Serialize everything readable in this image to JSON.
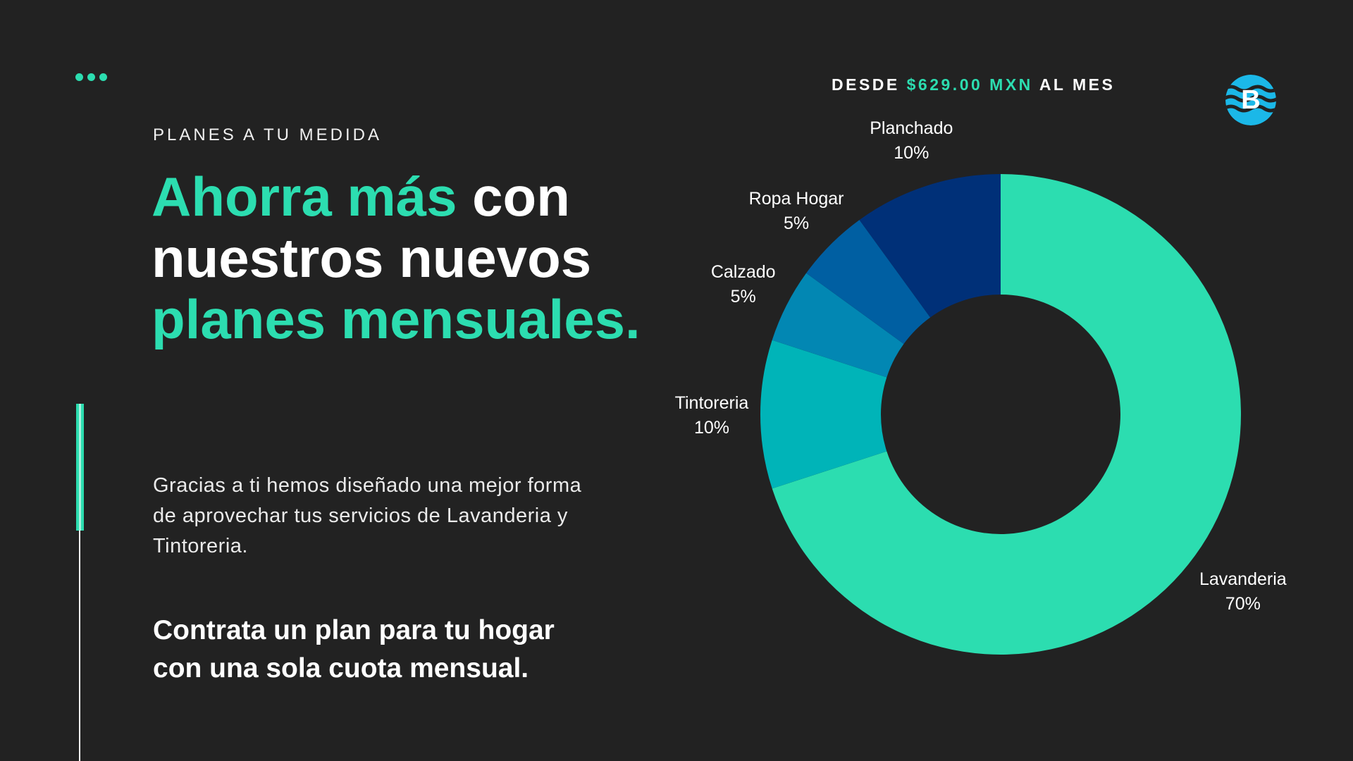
{
  "eyebrow": "PLANES A TU MEDIDA",
  "headline": {
    "accent1": "Ahorra más",
    "white1": " con",
    "white2": "nuestros nuevos",
    "accent2": "planes mensuales."
  },
  "body": "Gracias a ti hemos diseñado una mejor forma de aprovechar tus servicios de Lavanderia y Tintoreria.",
  "cta": "Contrata un plan para tu hogar con una sola cuota mensual.",
  "price": {
    "prefix": "DESDE ",
    "amount": "$629.00 MXN",
    "suffix": " AL MES"
  },
  "logo_letter": "B",
  "colors": {
    "background": "#222222",
    "accent": "#2cddb0",
    "logo": "#1bb8e8"
  },
  "chart_data": {
    "type": "pie",
    "donut": true,
    "start_angle_deg": 0,
    "direction": "clockwise",
    "slices": [
      {
        "label": "Lavanderia",
        "value_label": "70%",
        "value": 70,
        "color": "#2cddb0"
      },
      {
        "label": "Tintoreria",
        "value_label": "10%",
        "value": 10,
        "color": "#00b4b8"
      },
      {
        "label": "Calzado",
        "value_label": "5%",
        "value": 5,
        "color": "#0287b3"
      },
      {
        "label": "Ropa Hogar",
        "value_label": "5%",
        "value": 5,
        "color": "#005fa2"
      },
      {
        "label": "Planchado",
        "value_label": "10%",
        "value": 10,
        "color": "#003078"
      }
    ]
  }
}
